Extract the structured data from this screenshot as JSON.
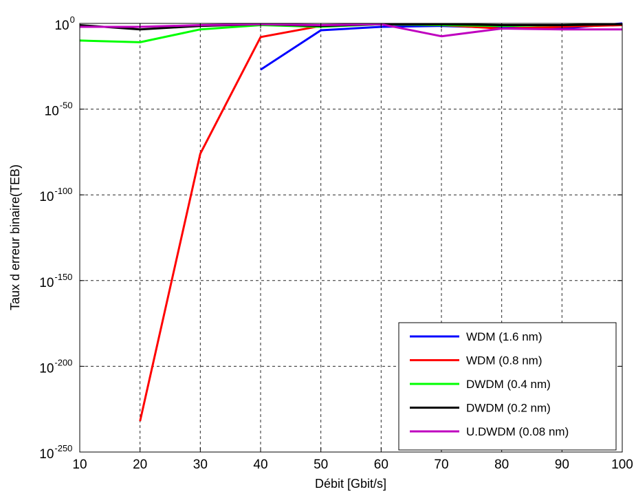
{
  "chart_data": {
    "type": "line",
    "title": "",
    "xlabel": "Débit [Gbit/s]",
    "ylabel": "Taux d erreur binaire(TEB)",
    "xlim": [
      10,
      100
    ],
    "ylim_log10": [
      -250,
      0
    ],
    "yscale": "log",
    "x_ticks": [
      10,
      20,
      30,
      40,
      50,
      60,
      70,
      80,
      90,
      100
    ],
    "y_tick_exponents": [
      0,
      -50,
      -100,
      -150,
      -200,
      -250
    ],
    "y_tick_base": "10",
    "grid": true,
    "legend_position": "bottom-right",
    "series": [
      {
        "name": "WDM (1.6 nm)",
        "color": "#0000ff",
        "x": [
          40,
          50,
          60,
          70,
          80,
          90,
          100
        ],
        "log10_y": [
          -27,
          -4,
          -2,
          -1.5,
          -2.5,
          -3,
          0
        ]
      },
      {
        "name": "WDM (0.8 nm)",
        "color": "#ff0000",
        "x": [
          20,
          30,
          40,
          50,
          60,
          70,
          80,
          90,
          100
        ],
        "log10_y": [
          -232,
          -76,
          -8,
          -1.5,
          -0.5,
          -1,
          -3,
          -2,
          -1
        ]
      },
      {
        "name": "DWDM (0.4 nm)",
        "color": "#00ff00",
        "x": [
          10,
          20,
          30,
          40,
          50,
          60,
          70,
          80,
          90,
          100
        ],
        "log10_y": [
          -10,
          -11,
          -3.5,
          -1,
          -2,
          -0.5,
          -1,
          -1.5,
          -1,
          -0.5
        ]
      },
      {
        "name": "DWDM (0.2 nm)",
        "color": "#000000",
        "x": [
          10,
          20,
          30,
          40,
          50,
          60,
          70,
          80,
          90,
          100
        ],
        "log10_y": [
          -1,
          -3.5,
          -1.5,
          -0.5,
          -1.5,
          -0.5,
          -0.5,
          -1,
          -1,
          -0.5
        ]
      },
      {
        "name": "U.DWDM (0.08 nm)",
        "color": "#bf00bf",
        "x": [
          10,
          20,
          30,
          40,
          50,
          60,
          70,
          80,
          90,
          100
        ],
        "log10_y": [
          -2,
          -2,
          -1,
          -0.5,
          -1,
          -0.5,
          -7.5,
          -3,
          -3.5,
          -3.5
        ]
      }
    ]
  }
}
